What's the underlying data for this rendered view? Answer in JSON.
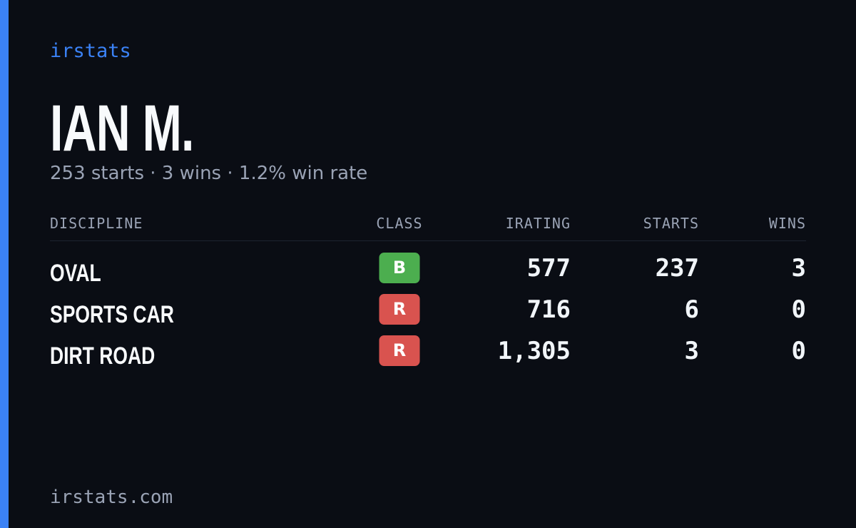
{
  "brand": "irstats",
  "profile": {
    "name": "IAN M.",
    "summary": "253 starts · 3 wins · 1.2% win rate"
  },
  "table": {
    "headers": [
      "DISCIPLINE",
      "CLASS",
      "IRATING",
      "STARTS",
      "WINS"
    ],
    "rows": [
      {
        "discipline": "OVAL",
        "class": "B",
        "class_color": "#4cae4f",
        "irating": "577",
        "starts": "237",
        "wins": "3"
      },
      {
        "discipline": "SPORTS CAR",
        "class": "R",
        "class_color": "#d9534f",
        "irating": "716",
        "starts": "6",
        "wins": "0"
      },
      {
        "discipline": "DIRT ROAD",
        "class": "R",
        "class_color": "#d9534f",
        "irating": "1,305",
        "starts": "3",
        "wins": "0"
      }
    ]
  },
  "footer": "irstats.com"
}
